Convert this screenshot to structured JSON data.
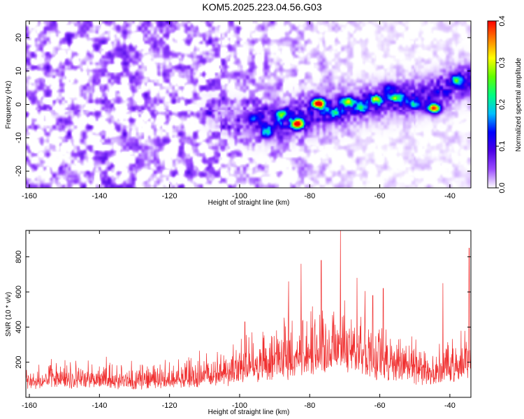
{
  "title": "KOM5.2025.223.04.56.G03",
  "colors": {
    "snr_line": "#f03030",
    "high_amplitude": "#ff0000",
    "low_amplitude": "#ffffff"
  },
  "chart_data": [
    {
      "type": "heatmap",
      "xlabel": "Height of straight line (km)",
      "ylabel": "Frequency (Hz)",
      "xlim": [
        -161,
        -34
      ],
      "ylim": [
        -25,
        25
      ],
      "x_ticks": [
        "-160",
        "-140",
        "-120",
        "-100",
        "-80",
        "-60",
        "-40"
      ],
      "y_ticks": [
        "-20",
        "-10",
        "0",
        "10",
        "20"
      ],
      "colorbar": {
        "label": "Normalized spectral amplitude",
        "range": [
          0,
          0.4
        ],
        "ticks": [
          "0.0",
          "0.1",
          "0.2",
          "0.3",
          "0.4"
        ],
        "colormap": [
          "#ffffff",
          "#9b4dff",
          "#4b00e6",
          "#0000ff",
          "#00bfff",
          "#00ff80",
          "#60ff00",
          "#ffff00",
          "#ff8000",
          "#ff0000"
        ]
      },
      "signal_track": {
        "x": [
          -110,
          -100,
          -90,
          -80,
          -70,
          -60,
          -50,
          -40,
          -36
        ],
        "frequency": [
          -2,
          -5,
          -6,
          -3,
          -1,
          1,
          2,
          5,
          7
        ]
      },
      "peaks": [
        {
          "x": -77.5,
          "frequency": 0.3,
          "amplitude": 0.4
        },
        {
          "x": -83.5,
          "frequency": -5.8,
          "amplitude": 0.38
        },
        {
          "x": -44.5,
          "frequency": -1.2,
          "amplitude": 0.36
        },
        {
          "x": -69,
          "frequency": 0.8,
          "amplitude": 0.22
        },
        {
          "x": -61,
          "frequency": 1.5,
          "amplitude": 0.22
        },
        {
          "x": -55,
          "frequency": 1.8,
          "amplitude": 0.2
        },
        {
          "x": -88,
          "frequency": -3,
          "amplitude": 0.18
        },
        {
          "x": -38,
          "frequency": 7.3,
          "amplitude": 0.16
        },
        {
          "x": -73,
          "frequency": -2.5,
          "amplitude": 0.14
        },
        {
          "x": -65,
          "frequency": -1,
          "amplitude": 0.14
        },
        {
          "x": -92,
          "frequency": -8.5,
          "amplitude": 0.12
        },
        {
          "x": -50,
          "frequency": 0,
          "amplitude": 0.13
        },
        {
          "x": -57,
          "frequency": 5,
          "amplitude": 0.1
        },
        {
          "x": -96,
          "frequency": -4,
          "amplitude": 0.1
        }
      ]
    },
    {
      "type": "line",
      "xlabel": "Height of straight line (km)",
      "ylabel": "SNR (10 * v/v)",
      "xlim": [
        -161,
        -34
      ],
      "ylim": [
        0,
        950
      ],
      "x_ticks": [
        "-160",
        "-140",
        "-120",
        "-100",
        "-80",
        "-60",
        "-40"
      ],
      "y_ticks": [
        "200",
        "400",
        "600",
        "800"
      ],
      "series": [
        {
          "x": [
            -161,
            -150,
            -140,
            -130,
            -120,
            -110,
            -100,
            -95,
            -90,
            -85,
            -80,
            -75,
            -70,
            -65,
            -60,
            -55,
            -50,
            -45,
            -40,
            -36,
            -34
          ],
          "values": [
            130,
            130,
            125,
            120,
            130,
            150,
            190,
            220,
            240,
            280,
            300,
            310,
            340,
            320,
            260,
            230,
            200,
            180,
            190,
            230,
            280
          ],
          "peaks": [
            {
              "x": -71.2,
              "value": 950
            },
            {
              "x": -76.7,
              "value": 780
            },
            {
              "x": -82.5,
              "value": 760
            },
            {
              "x": -86,
              "value": 660
            },
            {
              "x": -66.5,
              "value": 680
            },
            {
              "x": -34.5,
              "value": 850
            },
            {
              "x": -98.5,
              "value": 430
            },
            {
              "x": -59,
              "value": 620
            },
            {
              "x": -42,
              "value": 650
            },
            {
              "x": -62,
              "value": 580
            }
          ]
        }
      ]
    }
  ]
}
